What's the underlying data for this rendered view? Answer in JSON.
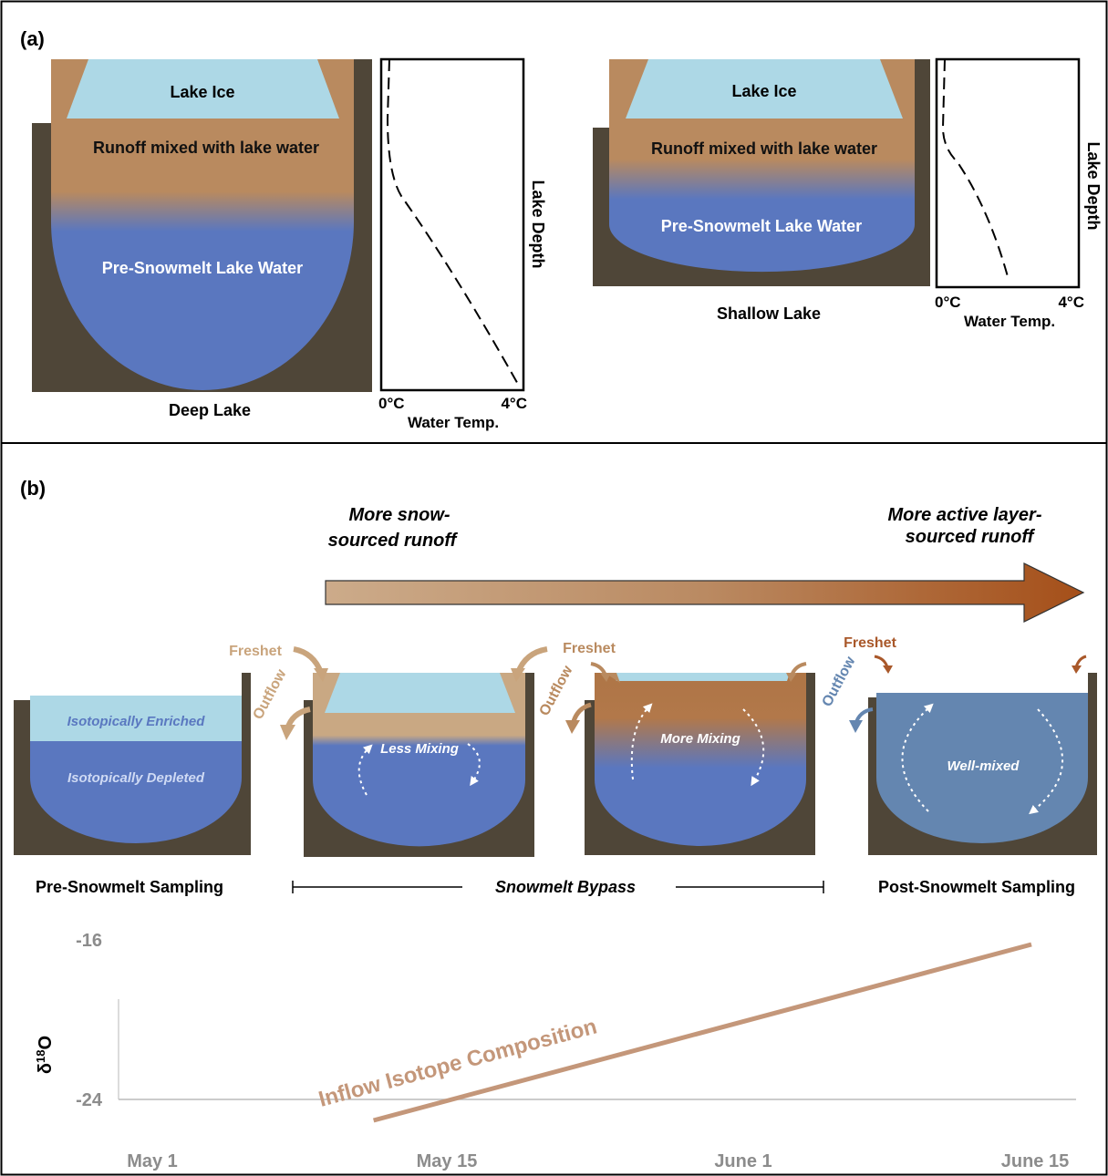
{
  "panel_a": {
    "label": "(a)",
    "deep": {
      "ice": "Lake Ice",
      "runoff": "Runoff mixed with lake water",
      "water": "Pre-Snowmelt Lake Water",
      "caption": "Deep Lake"
    },
    "shallow": {
      "ice": "Lake Ice",
      "runoff": "Runoff mixed with lake water",
      "water": "Pre-Snowmelt Lake Water",
      "caption": "Shallow Lake"
    },
    "profile": {
      "x_min": "0°C",
      "x_max": "4°C",
      "x_title": "Water Temp.",
      "y_title": "Lake Depth"
    }
  },
  "panel_b": {
    "label": "(b)",
    "left_text": [
      "More snow-",
      "sourced runoff"
    ],
    "right_text": [
      "More active layer-",
      "sourced runoff"
    ],
    "freshet": "Freshet",
    "outflow": "Outflow",
    "enriched": "Isotopically Enriched",
    "depleted": "Isotopically Depleted",
    "less_mixing": "Less Mixing",
    "more_mixing": "More Mixing",
    "well_mixed": "Well-mixed",
    "pre_sampling": "Pre-Snowmelt Sampling",
    "bypass": "Snowmelt Bypass",
    "post_sampling": "Post-Snowmelt Sampling"
  },
  "colors": {
    "ground": "#4f4638",
    "ice": "#add8e6",
    "runoff": "#b98a5f",
    "lake_water": "#5a77bf",
    "mixed_water": "#6486b0",
    "light_runoff": "#c9a883",
    "dark_runoff": "#a9582a",
    "inflow_line": "#c4977a"
  },
  "chart_data": {
    "type": "line",
    "y_label": "δ18O",
    "y_ticks": [
      "-16",
      "-24"
    ],
    "x_ticks": [
      "May 1",
      "May 15",
      "June 1",
      "June 15"
    ],
    "ylim": [
      -24,
      -16
    ],
    "series": [
      {
        "name": "Inflow Isotope Composition",
        "x": [
          "May 10",
          "June 15"
        ],
        "values": [
          -24,
          -16
        ]
      }
    ]
  }
}
